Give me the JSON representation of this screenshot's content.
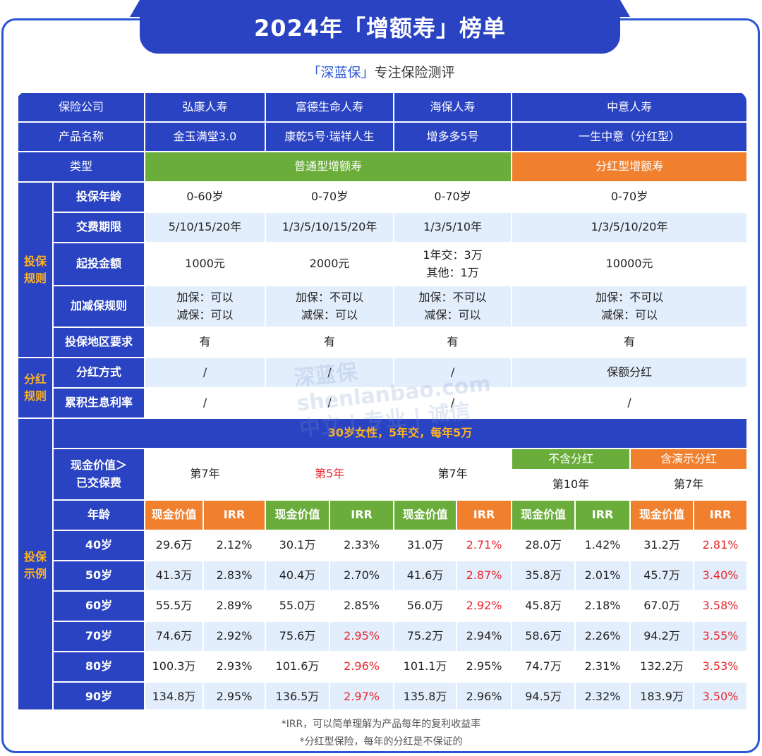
{
  "title": "2024年「增额寿」榜单",
  "subtitle_brand": "「深蓝保」",
  "subtitle_rest": "专注保险测评",
  "watermark_line1": "shenlanbao.com",
  "watermark_line2": "中立 | 专业 | 诚信",
  "watermark_logo": "深蓝保",
  "labels": {
    "company": "保险公司",
    "product": "产品名称",
    "type": "类型",
    "section_rules": "投保规则",
    "age": "投保年龄",
    "pay": "交费期限",
    "min": "起投金额",
    "adjust": "加减保规则",
    "region": "投保地区要求",
    "section_div": "分红规则",
    "div_method": "分红方式",
    "accum": "累积生息利率",
    "section_example": "投保示例",
    "scenario": "30岁女性，5年交，每年5万",
    "cv_gt_paid_1": "现金价值＞",
    "cv_gt_paid_2": "已交保费",
    "age_col": "年龄",
    "cv": "现金价值",
    "irr": "IRR",
    "no_div": "不含分红",
    "with_div": "含演示分红"
  },
  "companies": [
    "弘康人寿",
    "富德生命人寿",
    "海保人寿",
    "中意人寿"
  ],
  "products": [
    "金玉满堂3.0",
    "康乾5号·瑞祥人生",
    "增多多5号",
    "一生中意（分红型）"
  ],
  "types": {
    "normal": "普通型增额寿",
    "dividend": "分红型增额寿"
  },
  "ages": [
    "0-60岁",
    "0-70岁",
    "0-70岁",
    "0-70岁"
  ],
  "pay_terms": [
    "5/10/15/20年",
    "1/3/5/10/15/20年",
    "1/3/5/10年",
    "1/3/5/10/20年"
  ],
  "min_amount": {
    "p1": "1000元",
    "p2": "2000元",
    "p3_l1": "1年交：3万",
    "p3_l2": "其他：1万",
    "p4": "10000元"
  },
  "adjust_rules": [
    {
      "add": "加保：可以",
      "reduce": "减保：可以"
    },
    {
      "add": "加保：不可以",
      "reduce": "减保：可以"
    },
    {
      "add": "加保：不可以",
      "reduce": "减保：可以"
    },
    {
      "add": "加保：不可以",
      "reduce": "减保：可以"
    }
  ],
  "region_req": [
    "有",
    "有",
    "有",
    "有"
  ],
  "div_method": [
    "/",
    "/",
    "/",
    "保额分红"
  ],
  "accum_rate": [
    "/",
    "/",
    "/",
    "/"
  ],
  "breakeven": [
    "第7年",
    "第5年",
    "第7年",
    "第10年",
    "第7年"
  ],
  "example_rows": [
    {
      "age": "40岁",
      "v": [
        "29.6万",
        "2.12%",
        "30.1万",
        "2.33%",
        "31.0万",
        "2.71%",
        "28.0万",
        "1.42%",
        "31.2万",
        "2.81%"
      ]
    },
    {
      "age": "50岁",
      "v": [
        "41.3万",
        "2.83%",
        "40.4万",
        "2.70%",
        "41.6万",
        "2.87%",
        "35.8万",
        "2.01%",
        "45.7万",
        "3.40%"
      ]
    },
    {
      "age": "60岁",
      "v": [
        "55.5万",
        "2.89%",
        "55.0万",
        "2.85%",
        "56.0万",
        "2.92%",
        "45.8万",
        "2.18%",
        "67.0万",
        "3.58%"
      ]
    },
    {
      "age": "70岁",
      "v": [
        "74.6万",
        "2.92%",
        "75.6万",
        "2.95%",
        "75.2万",
        "2.94%",
        "58.6万",
        "2.26%",
        "94.2万",
        "3.55%"
      ]
    },
    {
      "age": "80岁",
      "v": [
        "100.3万",
        "2.93%",
        "101.6万",
        "2.96%",
        "101.1万",
        "2.95%",
        "74.7万",
        "2.31%",
        "132.2万",
        "3.53%"
      ]
    },
    {
      "age": "90岁",
      "v": [
        "134.8万",
        "2.95%",
        "136.5万",
        "2.97%",
        "135.8万",
        "2.96%",
        "94.5万",
        "2.32%",
        "183.9万",
        "3.50%"
      ]
    }
  ],
  "footnotes": [
    "*IRR，可以简单理解为产品每年的复利收益率",
    "*分红型保险，每年的分红是不保证的"
  ],
  "colors": {
    "primary_blue": "#2a43c2",
    "light_blue": "#e3eefc",
    "green": "#6aad3b",
    "orange": "#f0802e",
    "highlight_red": "#e8262b",
    "side_label": "#ffb21f"
  }
}
